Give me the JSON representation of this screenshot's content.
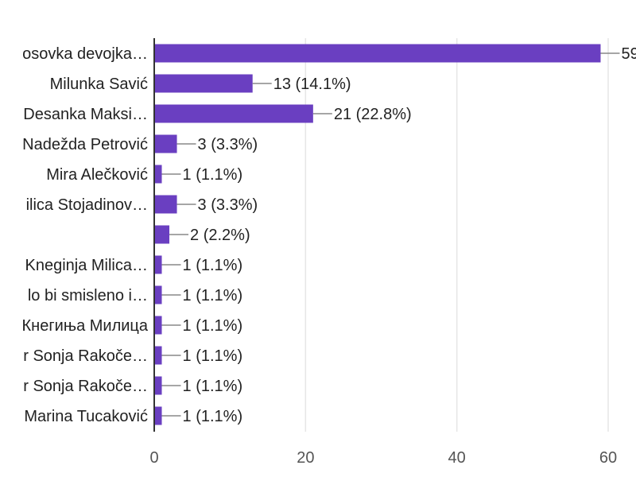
{
  "chart_data": {
    "type": "bar",
    "orientation": "horizontal",
    "categories": [
      "osovka devojka…",
      "Milunka Savić",
      "Desanka Maksi…",
      "Nadežda Petrović",
      "Mira Alečković",
      "ilica Stojadinov…",
      "",
      "Kneginja Milica…",
      "lo bi smisleno i…",
      "Кнегиња Милица",
      "r Sonja Rakoče…",
      "r Sonja Rakoče…",
      "Marina Tucaković"
    ],
    "values": [
      59,
      13,
      21,
      3,
      1,
      3,
      2,
      1,
      1,
      1,
      1,
      1,
      1
    ],
    "value_labels": [
      "59",
      "13 (14.1%)",
      "21 (22.8%)",
      "3 (3.3%)",
      "1 (1.1%)",
      "3 (3.3%)",
      "2 (2.2%)",
      "1 (1.1%)",
      "1 (1.1%)",
      "1 (1.1%)",
      "1 (1.1%)",
      "1 (1.1%)",
      "1 (1.1%)"
    ],
    "xlim": [
      0,
      60
    ],
    "x_ticks": [
      "0",
      "20",
      "40",
      "60"
    ],
    "grid": true,
    "bar_color": "#6a3fc1"
  }
}
